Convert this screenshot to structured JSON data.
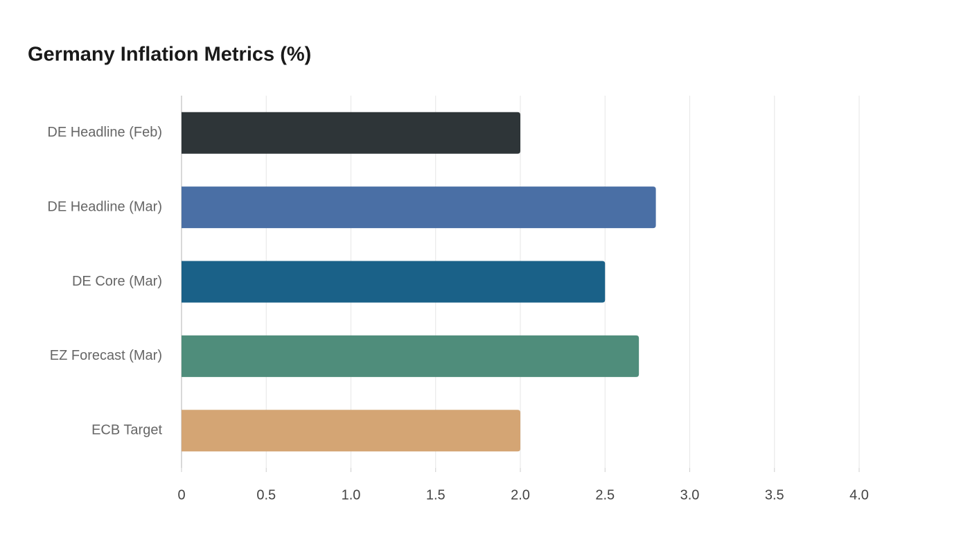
{
  "chart_data": {
    "type": "hbar",
    "title": "Germany Inflation Metrics (%)",
    "categories": [
      "DE Headline (Feb)",
      "DE Headline (Mar)",
      "DE Core (Mar)",
      "EZ Forecast (Mar)",
      "ECB Target"
    ],
    "values": [
      2.0,
      2.8,
      2.5,
      2.7,
      2.0
    ],
    "colors": [
      "#2e3538",
      "#4a6fa5",
      "#1a6188",
      "#4f8d7b",
      "#d4a574"
    ],
    "xlim": [
      0,
      4
    ],
    "xticks": [
      0,
      0.5,
      {
        "value": 1,
        "label": "1.0"
      },
      1.5,
      {
        "value": 2,
        "label": "2.0"
      },
      2.5,
      {
        "value": 3,
        "label": "3.0"
      },
      3.5,
      {
        "value": 4,
        "label": "4.0"
      }
    ],
    "grid": true
  }
}
